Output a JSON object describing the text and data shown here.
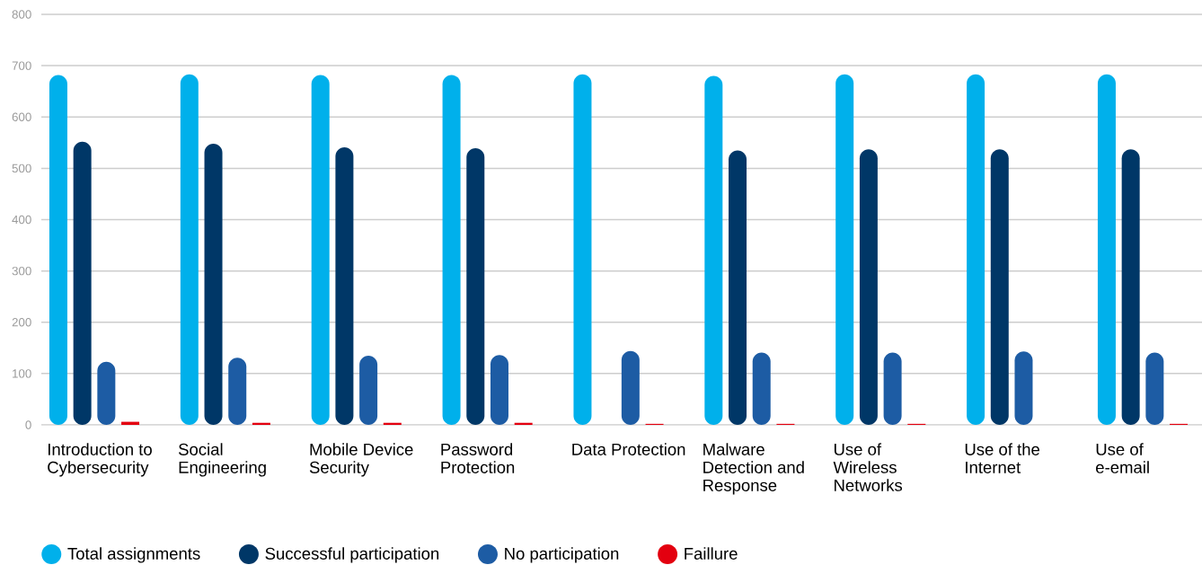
{
  "chart_data": {
    "type": "bar",
    "categories": [
      "Introduction to Cybersecurity",
      "Social Engineering",
      "Mobile Device Security",
      "Password Protection",
      "Data Protection",
      "Malware Detection and Response",
      "Use of Wireless Networks",
      "Use of the Internet",
      "Use of e-email"
    ],
    "series": [
      {
        "name": "Total assignments",
        "color": "#00b0eb",
        "values": [
          682,
          683,
          682,
          682,
          683,
          680,
          683,
          683,
          683
        ]
      },
      {
        "name": "Successful participation",
        "color": "#003767",
        "values": [
          552,
          548,
          541,
          539,
          null,
          535,
          537,
          537,
          537
        ]
      },
      {
        "name": "No participation",
        "color": "#1d5ca4",
        "values": [
          123,
          131,
          135,
          136,
          144,
          141,
          141,
          143,
          141
        ]
      },
      {
        "name": "Faillure",
        "color": "#e3000f",
        "values": [
          6,
          4,
          4,
          4,
          2,
          2,
          2,
          null,
          2
        ]
      }
    ],
    "ylim": [
      0,
      800
    ],
    "yticks": [
      0,
      100,
      200,
      300,
      400,
      500,
      600,
      700,
      800
    ],
    "grid": "y",
    "legend": "bottom"
  }
}
